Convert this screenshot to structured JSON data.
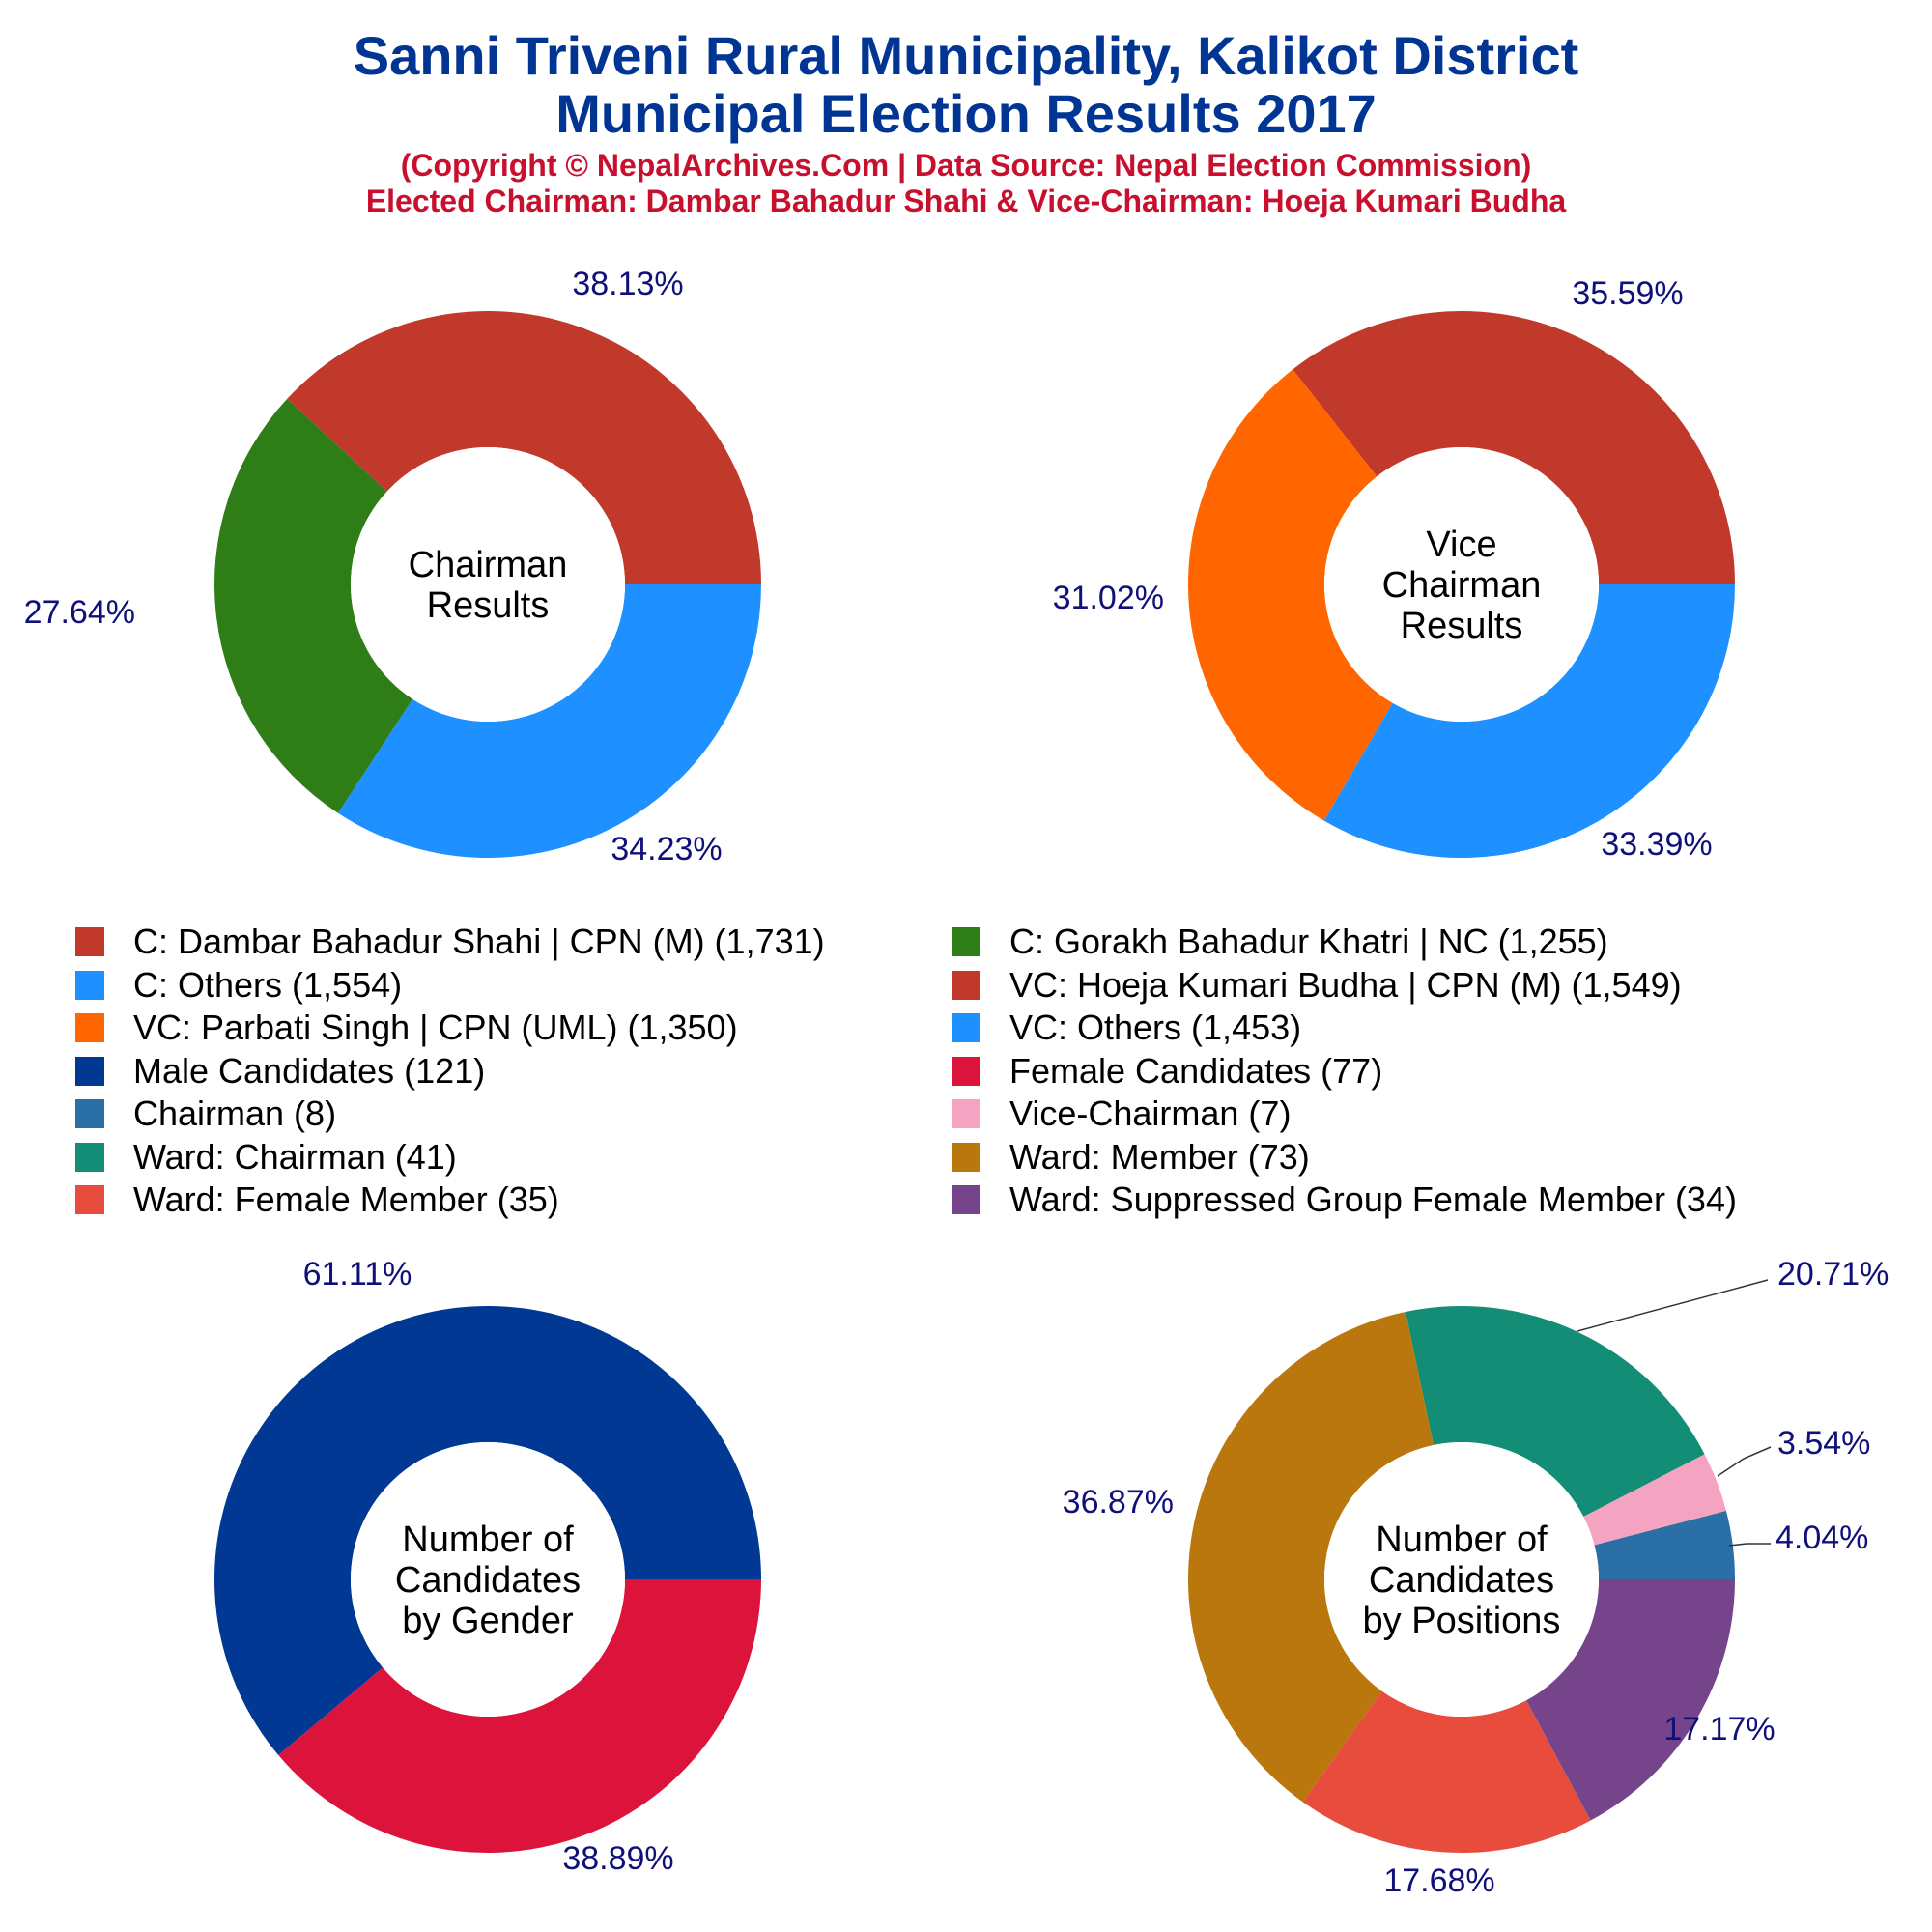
{
  "header": {
    "title_line1": "Sanni Triveni Rural Municipality, Kalikot District",
    "title_line2": "Municipal Election Results 2017",
    "subtitle_line1": "(Copyright © NepalArchives.Com | Data Source: Nepal Election Commission)",
    "subtitle_line2": "Elected Chairman: Dambar Bahadur Shahi & Vice-Chairman: Hoeja Kumari Budha"
  },
  "legend": [
    {
      "label": "C: Dambar Bahadur Shahi | CPN (M) (1,731)",
      "color": "#c0392b"
    },
    {
      "label": "C: Gorakh Bahadur Khatri | NC (1,255)",
      "color": "#2e7d17"
    },
    {
      "label": "C: Others (1,554)",
      "color": "#1e90ff"
    },
    {
      "label": "VC: Hoeja Kumari Budha | CPN (M) (1,549)",
      "color": "#c0392b"
    },
    {
      "label": "VC: Parbati Singh | CPN (UML) (1,350)",
      "color": "#ff6600"
    },
    {
      "label": "VC: Others (1,453)",
      "color": "#1e90ff"
    },
    {
      "label": "Male Candidates (121)",
      "color": "#003893"
    },
    {
      "label": "Female Candidates (77)",
      "color": "#dc143c"
    },
    {
      "label": "Chairman (8)",
      "color": "#2a6fa6"
    },
    {
      "label": "Vice-Chairman (7)",
      "color": "#f4a3c0"
    },
    {
      "label": "Ward: Chairman (41)",
      "color": "#138d75"
    },
    {
      "label": "Ward: Member (73)",
      "color": "#b9770e"
    },
    {
      "label": "Ward: Female Member (35)",
      "color": "#e74c3c"
    },
    {
      "label": "Ward: Suppressed Group Female Member (34)",
      "color": "#76448a"
    }
  ],
  "chart_data": [
    {
      "type": "pie",
      "center_label": [
        "Chairman",
        "Results"
      ],
      "slices": [
        {
          "label": "C: Dambar Bahadur Shahi | CPN (M)",
          "value": 1731,
          "percent": "38.13%",
          "color": "#c0392b"
        },
        {
          "label": "C: Gorakh Bahadur Khatri | NC",
          "value": 1255,
          "percent": "27.64%",
          "color": "#2e7d17"
        },
        {
          "label": "C: Others",
          "value": 1554,
          "percent": "34.23%",
          "color": "#1e90ff"
        }
      ]
    },
    {
      "type": "pie",
      "center_label": [
        "Vice",
        "Chairman",
        "Results"
      ],
      "slices": [
        {
          "label": "VC: Hoeja Kumari Budha | CPN (M)",
          "value": 1549,
          "percent": "35.59%",
          "color": "#c0392b"
        },
        {
          "label": "VC: Parbati Singh | CPN (UML)",
          "value": 1350,
          "percent": "31.02%",
          "color": "#ff6600"
        },
        {
          "label": "VC: Others",
          "value": 1453,
          "percent": "33.39%",
          "color": "#1e90ff"
        }
      ]
    },
    {
      "type": "pie",
      "center_label": [
        "Number of",
        "Candidates",
        "by Gender"
      ],
      "slices": [
        {
          "label": "Male Candidates",
          "value": 121,
          "percent": "61.11%",
          "color": "#003893"
        },
        {
          "label": "Female Candidates",
          "value": 77,
          "percent": "38.89%",
          "color": "#dc143c"
        }
      ]
    },
    {
      "type": "pie",
      "center_label": [
        "Number of",
        "Candidates",
        "by Positions"
      ],
      "slices": [
        {
          "label": "Chairman",
          "value": 8,
          "percent": "4.04%",
          "color": "#2a6fa6"
        },
        {
          "label": "Vice-Chairman",
          "value": 7,
          "percent": "3.54%",
          "color": "#f4a3c0"
        },
        {
          "label": "Ward: Chairman",
          "value": 41,
          "percent": "20.71%",
          "color": "#138d75"
        },
        {
          "label": "Ward: Member",
          "value": 73,
          "percent": "36.87%",
          "color": "#b9770e"
        },
        {
          "label": "Ward: Female Member",
          "value": 35,
          "percent": "17.68%",
          "color": "#e74c3c"
        },
        {
          "label": "Ward: Suppressed Group Female Member",
          "value": 34,
          "percent": "17.17%",
          "color": "#76448a"
        }
      ]
    }
  ]
}
